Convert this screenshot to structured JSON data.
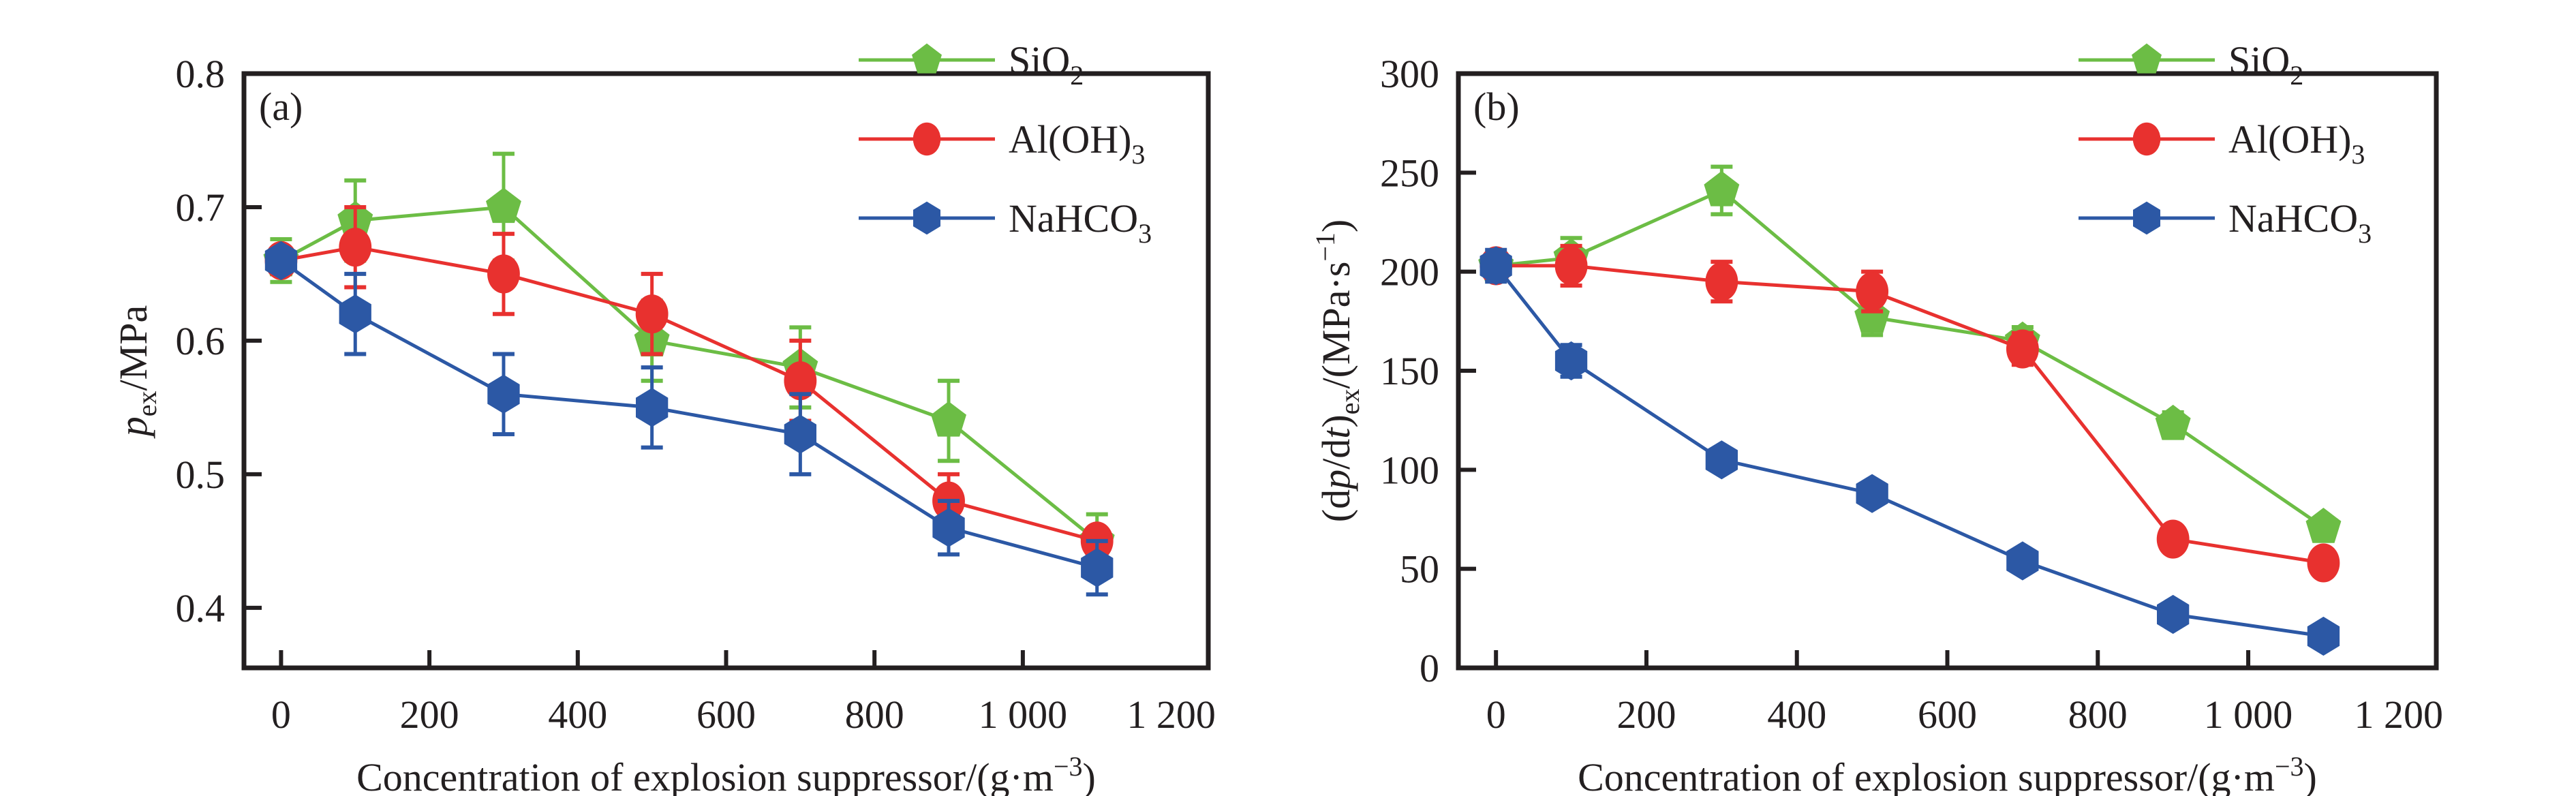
{
  "figure": {
    "panels": [
      "(a)",
      "(b)"
    ]
  },
  "chart_data": [
    {
      "type": "line",
      "panel_label": "(a)",
      "title": "",
      "xlabel": "Concentration of explosion suppressor/(g·m⁻³)",
      "xlabel_parts": {
        "main": "Concentration of explosion suppressor/(g·m",
        "sup": "−3",
        "end": ")"
      },
      "ylabel": "p_ex/MPa",
      "ylabel_parts": {
        "var": "p",
        "sub": "ex",
        "rest": "/MPa"
      },
      "xlim": [
        -50,
        1250
      ],
      "ylim": [
        0.355,
        0.8
      ],
      "xticks": [
        0,
        200,
        400,
        600,
        800,
        1000,
        1200
      ],
      "xtick_labels": [
        "0",
        "200",
        "400",
        "600",
        "800",
        "1 000",
        "1 200"
      ],
      "yticks": [
        0.4,
        0.5,
        0.6,
        0.7,
        0.8
      ],
      "ytick_labels": [
        "0.4",
        "0.5",
        "0.6",
        "0.7",
        "0.8"
      ],
      "grid": false,
      "legend_position": "top-right",
      "x": [
        0,
        100,
        300,
        500,
        700,
        900,
        1100
      ],
      "series": [
        {
          "name": "SiO2",
          "label_main": "SiO",
          "label_sub": "2",
          "color": "#6cbd45",
          "marker": "pentagon",
          "values": [
            0.66,
            0.69,
            0.7,
            0.6,
            0.58,
            0.54,
            0.45
          ],
          "errors": [
            0.016,
            0.03,
            0.04,
            0.03,
            0.03,
            0.03,
            0.02
          ]
        },
        {
          "name": "Al(OH)3",
          "label_main": "Al(OH)",
          "label_sub": "3",
          "color": "#e8312f",
          "marker": "circle",
          "values": [
            0.66,
            0.67,
            0.65,
            0.62,
            0.57,
            0.48,
            0.45
          ],
          "errors": [
            0.0,
            0.03,
            0.03,
            0.03,
            0.03,
            0.02,
            0.0
          ]
        },
        {
          "name": "NaHCO3",
          "label_main": "NaHCO",
          "label_sub": "3",
          "color": "#2c58a5",
          "marker": "hexagon",
          "values": [
            0.66,
            0.62,
            0.56,
            0.55,
            0.53,
            0.46,
            0.43
          ],
          "errors": [
            0.0,
            0.03,
            0.03,
            0.03,
            0.03,
            0.02,
            0.02
          ]
        }
      ]
    },
    {
      "type": "line",
      "panel_label": "(b)",
      "title": "",
      "xlabel": "Concentration of explosion suppressor/(g·m⁻³)",
      "xlabel_parts": {
        "main": "Concentration of explosion suppressor/(g·m",
        "sup": "−3",
        "end": ")"
      },
      "ylabel": "(dp/dt)_ex/(MPa·s⁻¹)",
      "ylabel_parts": {
        "pre": "(d",
        "var1": "p",
        "mid": "/d",
        "var2": "t",
        "close": ")",
        "sub": "ex",
        "rest": "/(MPa·s",
        "sup": "−1",
        "end": ")"
      },
      "xlim": [
        -50,
        1250
      ],
      "ylim": [
        0,
        300
      ],
      "xticks": [
        0,
        200,
        400,
        600,
        800,
        1000,
        1200
      ],
      "xtick_labels": [
        "0",
        "200",
        "400",
        "600",
        "800",
        "1 000",
        "1 200"
      ],
      "yticks": [
        0,
        50,
        100,
        150,
        200,
        250,
        300
      ],
      "ytick_labels": [
        "0",
        "50",
        "100",
        "150",
        "200",
        "250",
        "300"
      ],
      "grid": false,
      "legend_position": "top-right",
      "x": [
        0,
        100,
        300,
        500,
        700,
        900,
        1100
      ],
      "series": [
        {
          "name": "SiO2",
          "label_main": "SiO",
          "label_sub": "2",
          "color": "#6cbd45",
          "marker": "pentagon",
          "values": [
            203,
            207,
            241,
            177,
            165,
            123,
            71
          ],
          "errors": [
            0,
            10,
            12,
            9,
            7,
            6,
            0
          ]
        },
        {
          "name": "Al(OH)3",
          "label_main": "Al(OH)",
          "label_sub": "3",
          "color": "#e8312f",
          "marker": "circle",
          "values": [
            203,
            203,
            195,
            190,
            161,
            65,
            53
          ],
          "errors": [
            0,
            10,
            10,
            10,
            8,
            0,
            0
          ]
        },
        {
          "name": "NaHCO3",
          "label_main": "NaHCO",
          "label_sub": "3",
          "color": "#2c58a5",
          "marker": "hexagon",
          "values": [
            203,
            155,
            105,
            88,
            54,
            27,
            16
          ],
          "errors": [
            8,
            8,
            5,
            4,
            0,
            0,
            0
          ]
        }
      ]
    }
  ]
}
